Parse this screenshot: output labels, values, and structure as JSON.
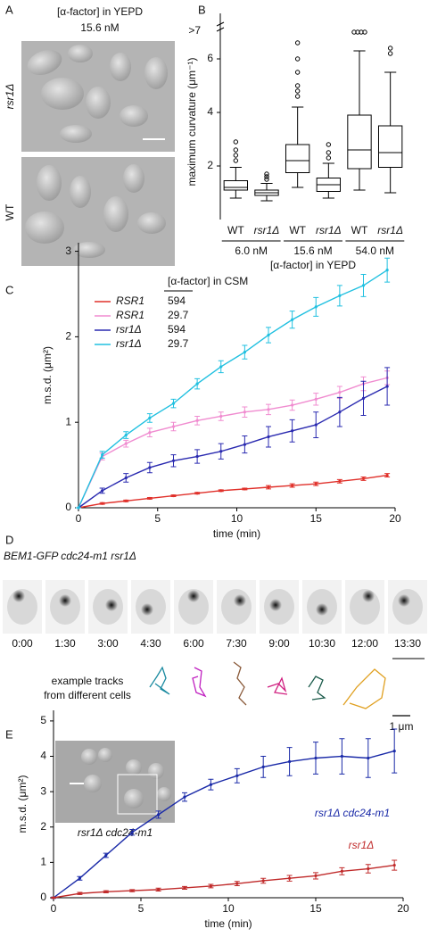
{
  "panels": {
    "A": {
      "label": "A",
      "heading": "[α-factor] in YEPD",
      "concentration": "15.6 nM",
      "row_labels": [
        "rsr1Δ",
        "WT"
      ]
    },
    "D": {
      "label": "D",
      "title": "BEM1-GFP cdc24-m1 rsr1Δ",
      "times": [
        "0:00",
        "1:30",
        "3:00",
        "4:30",
        "6:00",
        "7:30",
        "9:00",
        "10:30",
        "12:00",
        "13:30"
      ],
      "tracks_label": [
        "example tracks",
        "from different cells"
      ],
      "scale_label": "1 μm"
    },
    "E": {
      "inset_label": "rsr1Δ cdc24-m1"
    }
  },
  "chart_data": [
    {
      "type": "box",
      "panel": "B",
      "ylabel": "maximum curvature (μm⁻¹)",
      "xlabel": "[α-factor] in YEPD",
      "categories": [
        "WT",
        "rsr1Δ",
        "WT",
        "rsr1Δ",
        "WT",
        "rsr1Δ"
      ],
      "groups": [
        "6.0 nM",
        "15.6 nM",
        "54.0 nM"
      ],
      "axis_break_label": ">7",
      "ylim": [
        0,
        7.3
      ],
      "yticks": [
        2,
        4,
        6
      ],
      "color": "#000000",
      "boxes": [
        {
          "low": 0.8,
          "q1": 1.1,
          "median": 1.2,
          "q3": 1.45,
          "high": 1.95,
          "outliers": [
            2.2,
            2.4,
            2.6,
            2.9
          ]
        },
        {
          "low": 0.7,
          "q1": 0.9,
          "median": 1.0,
          "q3": 1.1,
          "high": 1.35,
          "outliers": [
            1.5,
            1.6,
            1.7
          ]
        },
        {
          "low": 1.2,
          "q1": 1.75,
          "median": 2.2,
          "q3": 2.8,
          "high": 4.2,
          "outliers": [
            4.6,
            4.8,
            5.0,
            5.5,
            6.0,
            6.6
          ]
        },
        {
          "low": 0.8,
          "q1": 1.05,
          "median": 1.3,
          "q3": 1.55,
          "high": 2.1,
          "outliers": [
            2.3,
            2.5,
            2.8
          ]
        },
        {
          "low": 1.1,
          "q1": 1.9,
          "median": 2.6,
          "q3": 3.9,
          "high": 6.3,
          "outliers": [
            7,
            7,
            7,
            7
          ]
        },
        {
          "low": 1.0,
          "q1": 1.95,
          "median": 2.5,
          "q3": 3.5,
          "high": 5.5,
          "outliers": [
            6.2,
            6.4
          ]
        }
      ]
    },
    {
      "type": "line",
      "panel": "C",
      "ylabel": "m.s.d. (μm²)",
      "xlabel": "time (min)",
      "legend": "upper left",
      "legend_title": "[α-factor] in CSM",
      "x": [
        0,
        1.5,
        3,
        4.5,
        6,
        7.5,
        9,
        10.5,
        12,
        13.5,
        15,
        16.5,
        18,
        19.5
      ],
      "xlim": [
        0,
        20
      ],
      "xticks": [
        0,
        5,
        10,
        15,
        20
      ],
      "ylim": [
        0,
        3.1
      ],
      "yticks": [
        0,
        1,
        2,
        3
      ],
      "series": [
        {
          "name": "RSR1",
          "concentration": "594",
          "color": "#e0302a",
          "values": [
            0,
            0.05,
            0.08,
            0.11,
            0.14,
            0.17,
            0.2,
            0.22,
            0.24,
            0.26,
            0.28,
            0.31,
            0.34,
            0.38
          ],
          "errors": [
            0,
            0.01,
            0.01,
            0.01,
            0.01,
            0.01,
            0.01,
            0.01,
            0.02,
            0.02,
            0.02,
            0.02,
            0.02,
            0.02
          ]
        },
        {
          "name": "RSR1",
          "concentration": "29.7",
          "color": "#f08cd0",
          "values": [
            0,
            0.6,
            0.75,
            0.88,
            0.95,
            1.02,
            1.07,
            1.12,
            1.15,
            1.2,
            1.27,
            1.35,
            1.45,
            1.52
          ],
          "errors": [
            0,
            0.04,
            0.04,
            0.05,
            0.05,
            0.05,
            0.05,
            0.06,
            0.06,
            0.06,
            0.07,
            0.07,
            0.08,
            0.08
          ]
        },
        {
          "name": "rsr1Δ",
          "concentration": "594",
          "color": "#2a2ab0",
          "values": [
            0,
            0.2,
            0.35,
            0.47,
            0.55,
            0.6,
            0.66,
            0.74,
            0.83,
            0.9,
            0.97,
            1.12,
            1.28,
            1.42
          ],
          "errors": [
            0,
            0.03,
            0.05,
            0.06,
            0.07,
            0.08,
            0.09,
            0.1,
            0.12,
            0.13,
            0.15,
            0.17,
            0.2,
            0.22
          ]
        },
        {
          "name": "rsr1Δ",
          "concentration": "29.7",
          "color": "#20c0e0",
          "values": [
            0,
            0.62,
            0.85,
            1.05,
            1.22,
            1.45,
            1.65,
            1.82,
            2.02,
            2.2,
            2.35,
            2.48,
            2.6,
            2.78
          ],
          "errors": [
            0,
            0.04,
            0.04,
            0.05,
            0.05,
            0.06,
            0.07,
            0.08,
            0.09,
            0.1,
            0.11,
            0.12,
            0.13,
            0.14
          ]
        }
      ]
    },
    {
      "type": "line",
      "panel": "E",
      "ylabel": "m.s.d. (μm²)",
      "xlabel": "time (min)",
      "legend": "inline",
      "x": [
        0,
        1.5,
        3,
        4.5,
        6,
        7.5,
        9,
        10.5,
        12,
        13.5,
        15,
        16.5,
        18,
        19.5
      ],
      "xlim": [
        0,
        20
      ],
      "xticks": [
        0,
        5,
        10,
        15,
        20
      ],
      "ylim": [
        0,
        5.3
      ],
      "yticks": [
        0,
        1,
        2,
        3,
        4,
        5
      ],
      "series": [
        {
          "name": "rsr1Δ cdc24-m1",
          "color": "#1a2aa8",
          "values": [
            0,
            0.55,
            1.2,
            1.85,
            2.35,
            2.85,
            3.2,
            3.45,
            3.7,
            3.85,
            3.95,
            4.0,
            3.95,
            4.15
          ],
          "errors": [
            0.02,
            0.05,
            0.06,
            0.08,
            0.1,
            0.12,
            0.15,
            0.2,
            0.3,
            0.4,
            0.45,
            0.5,
            0.55,
            0.62
          ]
        },
        {
          "name": "rsr1Δ",
          "color": "#c02a2a",
          "values": [
            0,
            0.12,
            0.17,
            0.2,
            0.23,
            0.28,
            0.33,
            0.4,
            0.48,
            0.55,
            0.62,
            0.75,
            0.82,
            0.92
          ],
          "errors": [
            0.01,
            0.03,
            0.03,
            0.03,
            0.04,
            0.04,
            0.05,
            0.06,
            0.07,
            0.08,
            0.09,
            0.1,
            0.12,
            0.14
          ]
        }
      ]
    }
  ]
}
